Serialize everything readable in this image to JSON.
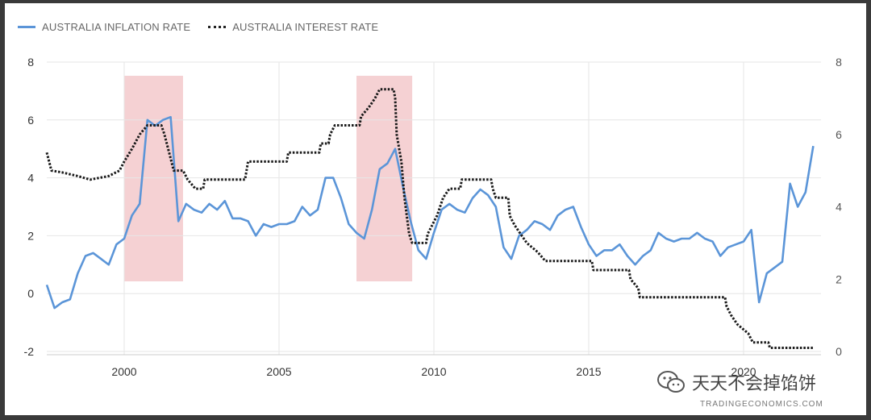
{
  "legend": {
    "inflation_label": "AUSTRALIA INFLATION RATE",
    "interest_label": "AUSTRALIA INTEREST RATE"
  },
  "colors": {
    "inflation": "#5b95d8",
    "interest": "#1a1a1a",
    "shade": "#f3c6c8"
  },
  "watermark": {
    "text": "天天不会掉馅饼",
    "icon": "wechat-icon"
  },
  "source": "TRADINGECONOMICS.COM",
  "chart_data": {
    "type": "line",
    "title": "",
    "xlabel": "",
    "ylabel": "",
    "grid": true,
    "legend_position": "top-left",
    "x_ticks": [
      "2000",
      "2005",
      "2010",
      "2015",
      "2020"
    ],
    "xlim": [
      1997.5,
      2022.5
    ],
    "y_left": {
      "ticks": [
        "8",
        "6",
        "4",
        "2",
        "0",
        "-2"
      ],
      "ylim": [
        -2,
        8
      ]
    },
    "y_right": {
      "ticks": [
        "8",
        "6",
        "4",
        "2",
        "0"
      ],
      "ylim": [
        0,
        8
      ]
    },
    "shaded_periods": [
      [
        2000.0,
        2001.9
      ],
      [
        2007.5,
        2009.3
      ]
    ],
    "series": [
      {
        "name": "AUSTRALIA INFLATION RATE",
        "axis": "left",
        "style": "solid",
        "points": [
          [
            1997.5,
            0.3
          ],
          [
            1997.75,
            -0.5
          ],
          [
            1998.0,
            -0.3
          ],
          [
            1998.25,
            -0.2
          ],
          [
            1998.5,
            0.7
          ],
          [
            1998.75,
            1.3
          ],
          [
            1999.0,
            1.4
          ],
          [
            1999.25,
            1.2
          ],
          [
            1999.5,
            1.0
          ],
          [
            1999.75,
            1.7
          ],
          [
            2000.0,
            1.9
          ],
          [
            2000.25,
            2.7
          ],
          [
            2000.5,
            3.1
          ],
          [
            2000.75,
            6.0
          ],
          [
            2001.0,
            5.8
          ],
          [
            2001.25,
            6.0
          ],
          [
            2001.5,
            6.1
          ],
          [
            2001.75,
            2.5
          ],
          [
            2002.0,
            3.1
          ],
          [
            2002.25,
            2.9
          ],
          [
            2002.5,
            2.8
          ],
          [
            2002.75,
            3.1
          ],
          [
            2003.0,
            2.9
          ],
          [
            2003.25,
            3.2
          ],
          [
            2003.5,
            2.6
          ],
          [
            2003.75,
            2.6
          ],
          [
            2004.0,
            2.5
          ],
          [
            2004.25,
            2.0
          ],
          [
            2004.5,
            2.4
          ],
          [
            2004.75,
            2.3
          ],
          [
            2005.0,
            2.4
          ],
          [
            2005.25,
            2.4
          ],
          [
            2005.5,
            2.5
          ],
          [
            2005.75,
            3.0
          ],
          [
            2006.0,
            2.7
          ],
          [
            2006.25,
            2.9
          ],
          [
            2006.5,
            4.0
          ],
          [
            2006.75,
            4.0
          ],
          [
            2007.0,
            3.3
          ],
          [
            2007.25,
            2.4
          ],
          [
            2007.5,
            2.1
          ],
          [
            2007.75,
            1.9
          ],
          [
            2008.0,
            2.9
          ],
          [
            2008.25,
            4.3
          ],
          [
            2008.5,
            4.5
          ],
          [
            2008.75,
            5.0
          ],
          [
            2009.0,
            3.7
          ],
          [
            2009.25,
            2.5
          ],
          [
            2009.5,
            1.5
          ],
          [
            2009.75,
            1.2
          ],
          [
            2010.0,
            2.1
          ],
          [
            2010.25,
            2.9
          ],
          [
            2010.5,
            3.1
          ],
          [
            2010.75,
            2.9
          ],
          [
            2011.0,
            2.8
          ],
          [
            2011.25,
            3.3
          ],
          [
            2011.5,
            3.6
          ],
          [
            2011.75,
            3.4
          ],
          [
            2012.0,
            3.0
          ],
          [
            2012.25,
            1.6
          ],
          [
            2012.5,
            1.2
          ],
          [
            2012.75,
            2.0
          ],
          [
            2013.0,
            2.2
          ],
          [
            2013.25,
            2.5
          ],
          [
            2013.5,
            2.4
          ],
          [
            2013.75,
            2.2
          ],
          [
            2014.0,
            2.7
          ],
          [
            2014.25,
            2.9
          ],
          [
            2014.5,
            3.0
          ],
          [
            2014.75,
            2.3
          ],
          [
            2015.0,
            1.7
          ],
          [
            2015.25,
            1.3
          ],
          [
            2015.5,
            1.5
          ],
          [
            2015.75,
            1.5
          ],
          [
            2016.0,
            1.7
          ],
          [
            2016.25,
            1.3
          ],
          [
            2016.5,
            1.0
          ],
          [
            2016.75,
            1.3
          ],
          [
            2017.0,
            1.5
          ],
          [
            2017.25,
            2.1
          ],
          [
            2017.5,
            1.9
          ],
          [
            2017.75,
            1.8
          ],
          [
            2018.0,
            1.9
          ],
          [
            2018.25,
            1.9
          ],
          [
            2018.5,
            2.1
          ],
          [
            2018.75,
            1.9
          ],
          [
            2019.0,
            1.8
          ],
          [
            2019.25,
            1.3
          ],
          [
            2019.5,
            1.6
          ],
          [
            2019.75,
            1.7
          ],
          [
            2020.0,
            1.8
          ],
          [
            2020.25,
            2.2
          ],
          [
            2020.5,
            -0.3
          ],
          [
            2020.75,
            0.7
          ],
          [
            2021.0,
            0.9
          ],
          [
            2021.25,
            1.1
          ],
          [
            2021.5,
            3.8
          ],
          [
            2021.75,
            3.0
          ],
          [
            2022.0,
            3.5
          ],
          [
            2022.25,
            5.1
          ]
        ]
      },
      {
        "name": "AUSTRALIA INTEREST RATE",
        "axis": "right",
        "style": "dotted",
        "points": [
          [
            1997.5,
            5.5
          ],
          [
            1997.65,
            5.0
          ],
          [
            1998.0,
            4.95
          ],
          [
            1998.5,
            4.85
          ],
          [
            1998.9,
            4.75
          ],
          [
            1999.5,
            4.85
          ],
          [
            1999.85,
            5.0
          ],
          [
            2000.0,
            5.25
          ],
          [
            2000.25,
            5.6
          ],
          [
            2000.5,
            6.0
          ],
          [
            2000.75,
            6.25
          ],
          [
            2001.2,
            6.25
          ],
          [
            2001.3,
            6.0
          ],
          [
            2001.45,
            5.5
          ],
          [
            2001.6,
            5.0
          ],
          [
            2001.9,
            5.0
          ],
          [
            2002.05,
            4.75
          ],
          [
            2002.3,
            4.5
          ],
          [
            2002.55,
            4.5
          ],
          [
            2002.6,
            4.75
          ],
          [
            2003.9,
            4.75
          ],
          [
            2003.95,
            5.0
          ],
          [
            2004.0,
            5.25
          ],
          [
            2005.25,
            5.25
          ],
          [
            2005.3,
            5.5
          ],
          [
            2006.3,
            5.5
          ],
          [
            2006.35,
            5.75
          ],
          [
            2006.6,
            5.75
          ],
          [
            2006.65,
            6.0
          ],
          [
            2006.8,
            6.25
          ],
          [
            2007.6,
            6.25
          ],
          [
            2007.65,
            6.5
          ],
          [
            2007.9,
            6.75
          ],
          [
            2008.1,
            7.0
          ],
          [
            2008.25,
            7.25
          ],
          [
            2008.7,
            7.25
          ],
          [
            2008.75,
            7.0
          ],
          [
            2008.8,
            6.0
          ],
          [
            2008.95,
            5.25
          ],
          [
            2009.05,
            4.25
          ],
          [
            2009.2,
            3.25
          ],
          [
            2009.3,
            3.0
          ],
          [
            2009.75,
            3.0
          ],
          [
            2009.8,
            3.25
          ],
          [
            2009.95,
            3.5
          ],
          [
            2010.1,
            3.75
          ],
          [
            2010.3,
            4.25
          ],
          [
            2010.5,
            4.5
          ],
          [
            2010.85,
            4.5
          ],
          [
            2010.9,
            4.75
          ],
          [
            2011.85,
            4.75
          ],
          [
            2011.9,
            4.5
          ],
          [
            2012.0,
            4.25
          ],
          [
            2012.4,
            4.25
          ],
          [
            2012.45,
            3.75
          ],
          [
            2012.6,
            3.5
          ],
          [
            2012.8,
            3.25
          ],
          [
            2013.0,
            3.0
          ],
          [
            2013.35,
            2.75
          ],
          [
            2013.6,
            2.5
          ],
          [
            2015.1,
            2.5
          ],
          [
            2015.15,
            2.25
          ],
          [
            2016.3,
            2.25
          ],
          [
            2016.35,
            2.0
          ],
          [
            2016.6,
            1.75
          ],
          [
            2016.65,
            1.5
          ],
          [
            2019.4,
            1.5
          ],
          [
            2019.45,
            1.25
          ],
          [
            2019.6,
            1.0
          ],
          [
            2019.8,
            0.75
          ],
          [
            2020.15,
            0.5
          ],
          [
            2020.3,
            0.25
          ],
          [
            2020.8,
            0.25
          ],
          [
            2020.85,
            0.1
          ],
          [
            2022.25,
            0.1
          ]
        ]
      }
    ]
  }
}
